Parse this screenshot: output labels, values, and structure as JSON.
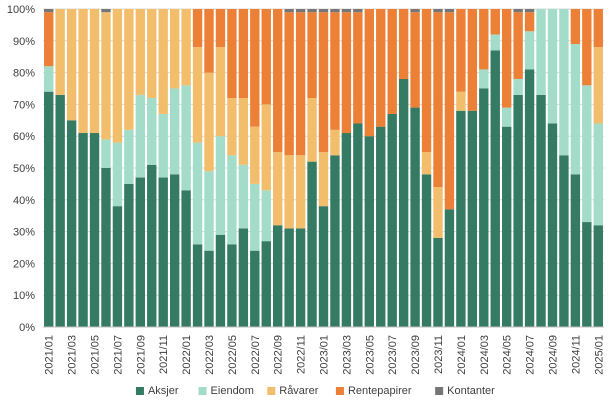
{
  "chart_data": {
    "type": "bar",
    "stacked": true,
    "percent": true,
    "ylim": [
      0,
      100
    ],
    "yticks": [
      "0%",
      "10%",
      "20%",
      "30%",
      "40%",
      "50%",
      "60%",
      "70%",
      "80%",
      "90%",
      "100%"
    ],
    "xtick_labels": [
      "2021/01",
      "2021/03",
      "2021/05",
      "2021/07",
      "2021/09",
      "2021/11",
      "2022/01",
      "2022/03",
      "2022/05",
      "2022/07",
      "2022/09",
      "2022/11",
      "2023/01",
      "2023/03",
      "2023/05",
      "2023/07",
      "2023/09",
      "2023/11",
      "2024/01",
      "2024/03",
      "2024/05",
      "2024/07",
      "2024/09",
      "2024/11",
      "2025/01"
    ],
    "categories": [
      "2021/01",
      "2021/02",
      "2021/03",
      "2021/04",
      "2021/05",
      "2021/06",
      "2021/07",
      "2021/08",
      "2021/09",
      "2021/10",
      "2021/11",
      "2021/12",
      "2022/01",
      "2022/02",
      "2022/03",
      "2022/04",
      "2022/05",
      "2022/06",
      "2022/07",
      "2022/08",
      "2022/09",
      "2022/10",
      "2022/11",
      "2022/12",
      "2023/01",
      "2023/02",
      "2023/03",
      "2023/04",
      "2023/05",
      "2023/06",
      "2023/07",
      "2023/08",
      "2023/09",
      "2023/10",
      "2023/11",
      "2023/12",
      "2024/01",
      "2024/02",
      "2024/03",
      "2024/04",
      "2024/05",
      "2024/06",
      "2024/07",
      "2024/08",
      "2024/09",
      "2024/10",
      "2024/11",
      "2024/12",
      "2025/01"
    ],
    "series": [
      {
        "name": "Aksjer",
        "color": "#357A62",
        "values": [
          74,
          73,
          65,
          61,
          61,
          50,
          38,
          45,
          47,
          51,
          47,
          48,
          43,
          26,
          24,
          29,
          26,
          31,
          24,
          27,
          32,
          31,
          31,
          52,
          38,
          54,
          61,
          64,
          60,
          63,
          67,
          78,
          69,
          48,
          28,
          37,
          68,
          68,
          75,
          87,
          63,
          73,
          81,
          73,
          64,
          54,
          48,
          33,
          32
        ]
      },
      {
        "name": "Eiendom",
        "color": "#A3DCC8",
        "values": [
          8,
          0,
          0,
          0,
          0,
          9,
          20,
          17,
          26,
          21,
          20,
          27,
          33,
          32,
          25,
          31,
          28,
          20,
          21,
          16,
          0,
          0,
          0,
          0,
          0,
          0,
          0,
          0,
          0,
          0,
          0,
          0,
          0,
          0,
          0,
          0,
          0,
          0,
          6,
          5,
          6,
          5,
          12,
          27,
          36,
          46,
          41,
          43,
          32
        ]
      },
      {
        "name": "Råvarer",
        "color": "#F2BE6C",
        "values": [
          0,
          27,
          35,
          39,
          39,
          40,
          42,
          38,
          27,
          28,
          33,
          25,
          24,
          30,
          31,
          28,
          18,
          21,
          18,
          27,
          23,
          23,
          23,
          20,
          17,
          8,
          0,
          0,
          0,
          0,
          0,
          0,
          0,
          7,
          16,
          0,
          6,
          0,
          0,
          0,
          0,
          0,
          0,
          0,
          0,
          0,
          0,
          0,
          24
        ]
      },
      {
        "name": "Rentepapirer",
        "color": "#EC8037",
        "values": [
          17,
          0,
          0,
          0,
          0,
          0,
          0,
          0,
          0,
          0,
          0,
          0,
          0,
          12,
          20,
          12,
          28,
          28,
          37,
          30,
          45,
          45,
          45,
          27,
          44,
          37,
          38,
          35,
          40,
          37,
          33,
          22,
          30,
          45,
          55,
          62,
          26,
          32,
          19,
          8,
          31,
          21,
          6,
          0,
          0,
          0,
          11,
          24,
          12
        ]
      },
      {
        "name": "Kontanter",
        "color": "#767676",
        "values": [
          1,
          0,
          0,
          0,
          0,
          1,
          0,
          0,
          0,
          0,
          0,
          0,
          0,
          0,
          0,
          0,
          0,
          0,
          0,
          0,
          0,
          1,
          1,
          1,
          1,
          1,
          1,
          1,
          0,
          0,
          0,
          0,
          1,
          0,
          1,
          1,
          0,
          0,
          0,
          0,
          0,
          1,
          1,
          0,
          0,
          0,
          0,
          0,
          0
        ]
      }
    ],
    "legend_position": "bottom",
    "grid": true
  }
}
